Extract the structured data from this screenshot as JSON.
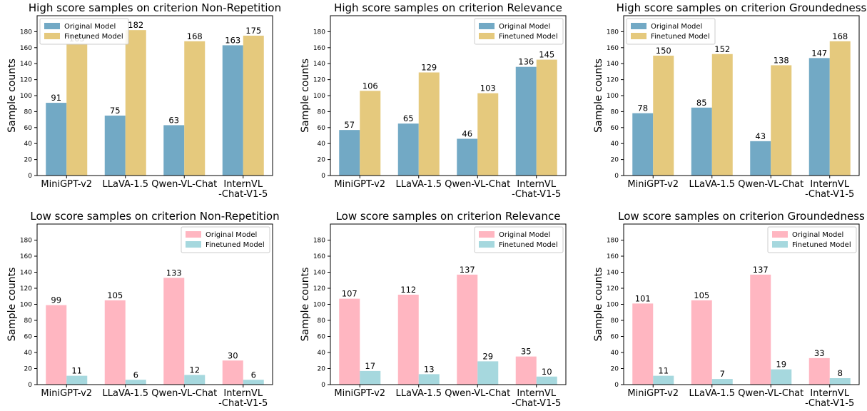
{
  "figure": {
    "colors": {
      "high_original": "#72a9c5",
      "high_finetuned": "#e5c97d",
      "low_original": "#ffb6c1",
      "low_finetuned": "#a6d8de",
      "axis": "#000000"
    }
  },
  "chart_data": [
    {
      "type": "bar",
      "title": "High score samples on criterion Non-Repetition",
      "xlabel": "",
      "ylabel": "Sample counts",
      "ylim": [
        0,
        200
      ],
      "yticks": [
        0,
        20,
        40,
        60,
        80,
        100,
        120,
        140,
        160,
        180
      ],
      "categories": [
        [
          "MiniGPT-v2"
        ],
        [
          "LLaVA-1.5"
        ],
        [
          "Qwen-VL-Chat"
        ],
        [
          "InternVL",
          "-Chat-V1-5"
        ]
      ],
      "series": [
        {
          "name": "Original Model",
          "values": [
            91,
            75,
            63,
            163
          ]
        },
        {
          "name": "Finetuned Model",
          "values": [
            165,
            182,
            168,
            175
          ]
        }
      ],
      "legend": "top-left",
      "palette": "high"
    },
    {
      "type": "bar",
      "title": "High score samples on criterion Relevance",
      "xlabel": "",
      "ylabel": "Sample counts",
      "ylim": [
        0,
        200
      ],
      "yticks": [
        0,
        20,
        40,
        60,
        80,
        100,
        120,
        140,
        160,
        180
      ],
      "categories": [
        [
          "MiniGPT-v2"
        ],
        [
          "LLaVA-1.5"
        ],
        [
          "Qwen-VL-Chat"
        ],
        [
          "InternVL",
          "-Chat-V1-5"
        ]
      ],
      "series": [
        {
          "name": "Original Model",
          "values": [
            57,
            65,
            46,
            136
          ]
        },
        {
          "name": "Finetuned Model",
          "values": [
            106,
            129,
            103,
            145
          ]
        }
      ],
      "legend": "top-right",
      "palette": "high"
    },
    {
      "type": "bar",
      "title": "High score samples on criterion Groundedness",
      "xlabel": "",
      "ylabel": "Sample counts",
      "ylim": [
        0,
        200
      ],
      "yticks": [
        0,
        20,
        40,
        60,
        80,
        100,
        120,
        140,
        160,
        180
      ],
      "categories": [
        [
          "MiniGPT-v2"
        ],
        [
          "LLaVA-1.5"
        ],
        [
          "Qwen-VL-Chat"
        ],
        [
          "InternVL",
          "-Chat-V1-5"
        ]
      ],
      "series": [
        {
          "name": "Original Model",
          "values": [
            78,
            85,
            43,
            147
          ]
        },
        {
          "name": "Finetuned Model",
          "values": [
            150,
            152,
            138,
            168
          ]
        }
      ],
      "legend": "top-left",
      "palette": "high"
    },
    {
      "type": "bar",
      "title": "Low score samples on criterion Non-Repetition",
      "xlabel": "",
      "ylabel": "Sample counts",
      "ylim": [
        0,
        200
      ],
      "yticks": [
        0,
        20,
        40,
        60,
        80,
        100,
        120,
        140,
        160,
        180
      ],
      "categories": [
        [
          "MiniGPT-v2"
        ],
        [
          "LLaVA-1.5"
        ],
        [
          "Qwen-VL-Chat"
        ],
        [
          "InternVL",
          "-Chat-V1-5"
        ]
      ],
      "series": [
        {
          "name": "Original Model",
          "values": [
            99,
            105,
            133,
            30
          ]
        },
        {
          "name": "Finetuned Model",
          "values": [
            11,
            6,
            12,
            6
          ]
        }
      ],
      "legend": "top-right",
      "palette": "low"
    },
    {
      "type": "bar",
      "title": "Low score samples on criterion Relevance",
      "xlabel": "",
      "ylabel": "Sample counts",
      "ylim": [
        0,
        200
      ],
      "yticks": [
        0,
        20,
        40,
        60,
        80,
        100,
        120,
        140,
        160,
        180
      ],
      "categories": [
        [
          "MiniGPT-v2"
        ],
        [
          "LLaVA-1.5"
        ],
        [
          "Qwen-VL-Chat"
        ],
        [
          "InternVL",
          "-Chat-V1-5"
        ]
      ],
      "series": [
        {
          "name": "Original Model",
          "values": [
            107,
            112,
            137,
            35
          ]
        },
        {
          "name": "Finetuned Model",
          "values": [
            17,
            13,
            29,
            10
          ]
        }
      ],
      "legend": "top-right",
      "palette": "low"
    },
    {
      "type": "bar",
      "title": "Low score samples on criterion Groundedness",
      "xlabel": "",
      "ylabel": "Sample counts",
      "ylim": [
        0,
        200
      ],
      "yticks": [
        0,
        20,
        40,
        60,
        80,
        100,
        120,
        140,
        160,
        180
      ],
      "categories": [
        [
          "MiniGPT-v2"
        ],
        [
          "LLaVA-1.5"
        ],
        [
          "Qwen-VL-Chat"
        ],
        [
          "InternVL",
          "-Chat-V1-5"
        ]
      ],
      "series": [
        {
          "name": "Original Model",
          "values": [
            101,
            105,
            137,
            33
          ]
        },
        {
          "name": "Finetuned Model",
          "values": [
            11,
            7,
            19,
            8
          ]
        }
      ],
      "legend": "top-right",
      "palette": "low"
    }
  ]
}
